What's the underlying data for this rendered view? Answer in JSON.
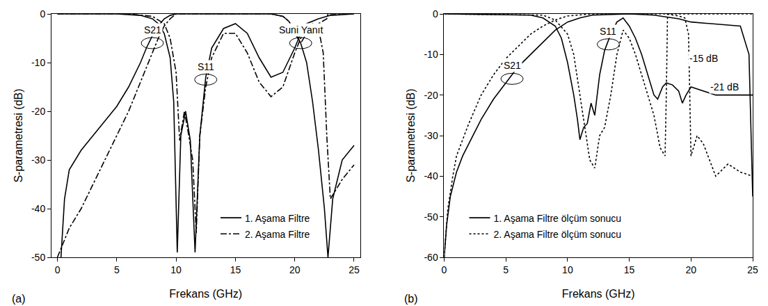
{
  "chart_data": [
    {
      "type": "line",
      "panel": "(a)",
      "xlabel": "Frekans (GHz)",
      "ylabel": "S-parametresi (dB)",
      "xlim": [
        -0.5,
        25.5
      ],
      "xticks": [
        0,
        5,
        10,
        15,
        20,
        25
      ],
      "ylim": [
        -50,
        0
      ],
      "yticks": [
        -50,
        -40,
        -30,
        -20,
        -10,
        0
      ],
      "grid": false,
      "legend": "lower right",
      "series": [
        {
          "name": "1. Aşama Filtre",
          "color": "#000000",
          "line_style": "solid",
          "x": [
            0.3,
            0.6,
            1,
            2,
            3,
            4,
            5,
            6,
            7,
            7.5,
            8,
            8.5,
            9,
            9.5,
            10,
            12,
            15,
            18,
            19,
            19.5,
            20,
            20.5,
            21,
            21.5,
            22,
            22.5,
            22.8,
            23.2,
            24,
            25
          ],
          "values": [
            -50,
            -38,
            -32,
            -28,
            -25,
            -22,
            -19,
            -15,
            -10,
            -7,
            -4.5,
            -2.5,
            -1,
            -0.3,
            0,
            0,
            0,
            0,
            -0.5,
            -1.5,
            -3.5,
            -6,
            -10,
            -18,
            -28,
            -40,
            -50,
            -38,
            -30,
            -27
          ]
        },
        {
          "name": "1. Aşama Filtre",
          "color": "#000000",
          "line_style": "solid",
          "x": [
            0,
            5,
            7,
            8,
            8.5,
            9,
            9.5,
            9.8,
            10.1,
            10.4,
            10.8,
            11.2,
            11.6,
            12,
            12.5,
            13,
            14,
            15,
            16,
            17,
            18,
            19,
            20,
            20.5,
            21,
            22,
            23,
            25
          ],
          "values": [
            0,
            0,
            -0.3,
            -1,
            -2,
            -4,
            -9,
            -18,
            -49,
            -25,
            -20,
            -26,
            -49,
            -25,
            -13,
            -7,
            -3,
            -2,
            -4,
            -9,
            -13,
            -12,
            -7,
            -4,
            -2,
            -1,
            -0.3,
            0
          ]
        },
        {
          "name": "2. Aşama Filtre",
          "color": "#000000",
          "line_style": "dashdot",
          "x": [
            0,
            0.5,
            1,
            2,
            3,
            4,
            5,
            6,
            7,
            8,
            8.5,
            9,
            9.5,
            10,
            12,
            15,
            18,
            19,
            19.5,
            20,
            20.5,
            21,
            21.5,
            22,
            22.4,
            22.7,
            23,
            24,
            25
          ],
          "values": [
            -50,
            -47,
            -44,
            -40,
            -35,
            -30,
            -25,
            -20,
            -14,
            -8,
            -5,
            -2.5,
            -1,
            0,
            0,
            0,
            0,
            -0.5,
            -1.5,
            -4,
            -6,
            -4,
            -2,
            -3,
            -8,
            -25,
            -38,
            -34,
            -31
          ]
        },
        {
          "name": "2. Aşama Filtre",
          "color": "#000000",
          "line_style": "dashdot",
          "x": [
            0,
            6,
            8,
            9,
            9.5,
            10,
            10.3,
            10.7,
            11,
            11.4,
            11.7,
            12,
            12.5,
            13,
            14,
            15,
            16,
            17,
            18,
            19,
            20,
            20.5,
            21,
            22,
            22.7,
            22.8,
            25
          ],
          "values": [
            0,
            0,
            -0.5,
            -2,
            -5,
            -12,
            -26,
            -20,
            -24,
            -30,
            -45,
            -25,
            -15,
            -9,
            -4,
            -4,
            -8,
            -14,
            -17,
            -15,
            -8,
            -5,
            -3,
            -2,
            -1,
            0,
            0
          ]
        }
      ],
      "annotations": [
        {
          "text": "S21",
          "x": 8,
          "y": -6,
          "marker": "ellipse"
        },
        {
          "text": "S11",
          "x": 12.5,
          "y": -13.5,
          "marker": "ellipse"
        },
        {
          "text": "Suni Yanıt",
          "x": 20.5,
          "y": -6,
          "marker": "ellipse"
        }
      ]
    },
    {
      "type": "line",
      "panel": "(b)",
      "xlabel": "Frekans (GHz)",
      "ylabel": "S-parametresi (dB)",
      "xlim": [
        0,
        25
      ],
      "xticks": [
        0,
        5,
        10,
        15,
        20,
        25
      ],
      "ylim": [
        -60,
        0
      ],
      "yticks": [
        -60,
        -50,
        -40,
        -30,
        -20,
        -10,
        0
      ],
      "grid": false,
      "legend": "lower left",
      "series": [
        {
          "name": "1. Aşama Filtre ölçüm sonucu",
          "color": "#000000",
          "line_style": "solid",
          "x": [
            0,
            0.2,
            0.5,
            1,
            1.5,
            2,
            3,
            4,
            5,
            6,
            7,
            8,
            9,
            10,
            11,
            12,
            15,
            17,
            18,
            19,
            20,
            22,
            24,
            24.7,
            25
          ],
          "values": [
            -60,
            -52,
            -45,
            -39,
            -35,
            -32,
            -26,
            -21,
            -17,
            -13,
            -10,
            -7,
            -4,
            -2,
            -1,
            -0.3,
            0,
            -0.3,
            -0.8,
            -1.2,
            -2,
            -2.5,
            -3,
            -10,
            -45
          ]
        },
        {
          "name": "1. Aşama Filtre ölçüm sonucu",
          "color": "#000000",
          "line_style": "solid",
          "x": [
            0,
            7,
            8,
            9,
            9.5,
            10,
            10.5,
            10.8,
            11,
            11.3,
            11.6,
            11.9,
            12.2,
            12.6,
            13,
            13.5,
            14,
            14.5,
            15,
            15.5,
            16,
            16.5,
            17,
            17.3,
            17.7,
            18,
            18.5,
            19,
            19.3,
            19.6,
            20,
            22,
            25
          ],
          "values": [
            0,
            -0.3,
            -1,
            -3,
            -6,
            -12,
            -20,
            -26,
            -31,
            -28,
            -27,
            -22,
            -25,
            -15,
            -9,
            -5,
            -2,
            -1,
            -3,
            -6,
            -10,
            -15,
            -20,
            -21,
            -18,
            -17,
            -17.5,
            -19,
            -22,
            -20,
            -18,
            -20,
            -20
          ]
        },
        {
          "name": "2. Aşama Filtre ölçüm sonucu",
          "color": "#000000",
          "line_style": "dot",
          "x": [
            0,
            0.3,
            0.7,
            1,
            2,
            3,
            4,
            5,
            6,
            7,
            8,
            9,
            10,
            12,
            15,
            18,
            19,
            19.5,
            19.8,
            20,
            20.5,
            21,
            22,
            23,
            24,
            25
          ],
          "values": [
            -60,
            -48,
            -40,
            -35,
            -27,
            -20,
            -15,
            -11,
            -8,
            -5,
            -3,
            -1.5,
            -0.5,
            0,
            0,
            0,
            -0.5,
            -1,
            -5,
            -35,
            -30,
            -32,
            -40,
            -37,
            -39,
            -40
          ]
        },
        {
          "name": "2. Aşama Filtre ölçüm sonucu",
          "color": "#000000",
          "line_style": "dot",
          "x": [
            0,
            8,
            9,
            10,
            10.5,
            11,
            11.5,
            11.8,
            12.2,
            12.6,
            13,
            13.5,
            14,
            14.5,
            15,
            15.5,
            16,
            16.5,
            17,
            17.5,
            17.9,
            18,
            18.1,
            19,
            20,
            22,
            25
          ],
          "values": [
            0,
            -0.3,
            -1.5,
            -5,
            -10,
            -20,
            -30,
            -36,
            -38,
            -30,
            -28,
            -20,
            -10,
            -4,
            -6,
            -10,
            -15,
            -20,
            -25,
            -33,
            -35,
            -20,
            0,
            0,
            0,
            0,
            0
          ]
        }
      ],
      "annotations": [
        {
          "text": "S21",
          "x": 5.5,
          "y": -16,
          "marker": "ellipse"
        },
        {
          "text": "S11",
          "x": 13.3,
          "y": -7.5,
          "marker": "ellipse"
        },
        {
          "text": "-15 dB",
          "x": 21,
          "y": -11
        },
        {
          "text": "-21 dB",
          "x": 22.7,
          "y": -18
        }
      ]
    }
  ]
}
